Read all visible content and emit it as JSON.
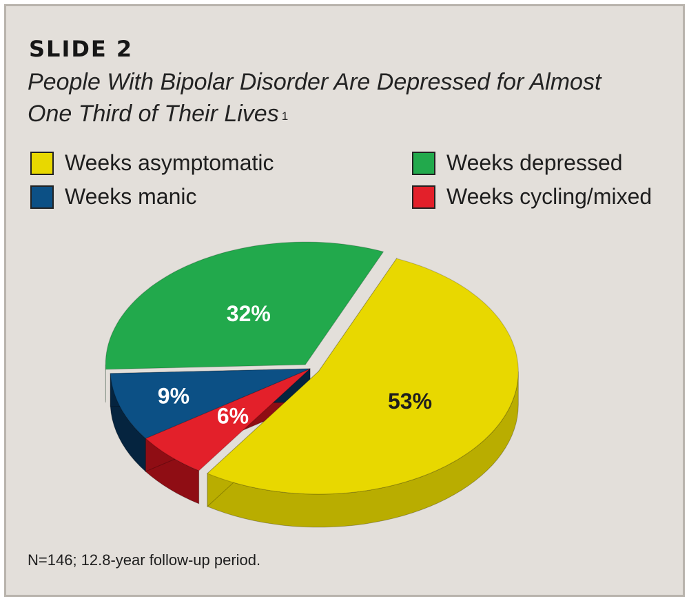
{
  "slide_label": "SLIDE 2",
  "title_line1": "People With Bipolar Disorder Are Depressed for Almost",
  "title_line2": "One Third of Their Lives",
  "footnote_ref": "1",
  "note": "N=146; 12.8-year follow-up period.",
  "legend": [
    {
      "label": "Weeks asymptomatic",
      "color": "#e8d800"
    },
    {
      "label": "Weeks depressed",
      "color": "#22a94c"
    },
    {
      "label": "Weeks manic",
      "color": "#0c5085"
    },
    {
      "label": "Weeks cycling/mixed",
      "color": "#e3202a"
    }
  ],
  "chart_data": {
    "type": "pie",
    "title": "People With Bipolar Disorder Are Depressed for Almost One Third of Their Lives",
    "slices": [
      {
        "name": "Weeks asymptomatic",
        "value": 53,
        "label": "53%",
        "color": "#e8d800",
        "dark": "#b9ad00",
        "label_color": "#1e1e1e"
      },
      {
        "name": "Weeks cycling/mixed",
        "value": 6,
        "label": "6%",
        "color": "#e3202a",
        "dark": "#8f0d14",
        "label_color": "#ffffff"
      },
      {
        "name": "Weeks manic",
        "value": 9,
        "label": "9%",
        "color": "#0c5085",
        "dark": "#05243f",
        "label_color": "#ffffff"
      },
      {
        "name": "Weeks depressed",
        "value": 32,
        "label": "32%",
        "color": "#22a94c",
        "dark": "#137030",
        "label_color": "#ffffff"
      }
    ],
    "legend_position": "top"
  }
}
